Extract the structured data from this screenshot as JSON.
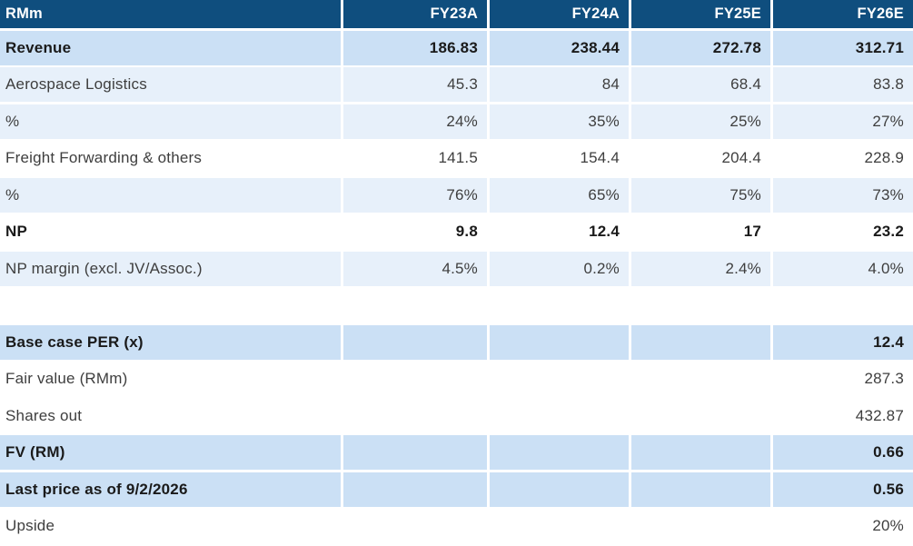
{
  "colors": {
    "header_bg": "#0F4E7E",
    "header_text": "#FFFFFF",
    "emphasis_row_bg": "#CBE0F5",
    "tint_row_bg": "#E7F0FA",
    "text": "#3E3E3E",
    "bold_text": "#1A1A1A"
  },
  "table": {
    "columns": [
      "RMm",
      "FY23A",
      "FY24A",
      "FY25E",
      "FY26E"
    ],
    "rows": [
      {
        "label": "Revenue",
        "values": [
          "186.83",
          "238.44",
          "272.78",
          "312.71"
        ],
        "style": "emphasis",
        "bold": true
      },
      {
        "label": "Aerospace Logistics",
        "values": [
          "45.3",
          "84",
          "68.4",
          "83.8"
        ],
        "style": "tint",
        "bold": false
      },
      {
        "label": "%",
        "values": [
          "24%",
          "35%",
          "25%",
          "27%"
        ],
        "style": "tint",
        "bold": false
      },
      {
        "label": "Freight Forwarding & others",
        "values": [
          "141.5",
          "154.4",
          "204.4",
          "228.9"
        ],
        "style": "plain",
        "bold": false
      },
      {
        "label": "%",
        "values": [
          "76%",
          "65%",
          "75%",
          "73%"
        ],
        "style": "tint",
        "bold": false
      },
      {
        "label": "NP",
        "values": [
          "9.8",
          "12.4",
          "17",
          "23.2"
        ],
        "style": "plain",
        "bold": true
      },
      {
        "label": "NP margin (excl. JV/Assoc.)",
        "values": [
          "4.5%",
          "0.2%",
          "2.4%",
          "4.0%"
        ],
        "style": "tint",
        "bold": false
      },
      {
        "label": "",
        "values": [
          "",
          "",
          "",
          ""
        ],
        "style": "spacer",
        "bold": false
      },
      {
        "label": "Base case PER (x)",
        "values": [
          "",
          "",
          "",
          "12.4"
        ],
        "style": "emphasis",
        "bold": true
      },
      {
        "label": "Fair value (RMm)",
        "values": [
          "",
          "",
          "",
          "287.3"
        ],
        "style": "plain",
        "bold": false
      },
      {
        "label": "Shares out",
        "values": [
          "",
          "",
          "",
          "432.87"
        ],
        "style": "plain",
        "bold": false
      },
      {
        "label": "FV (RM)",
        "values": [
          "",
          "",
          "",
          "0.66"
        ],
        "style": "emphasis",
        "bold": true
      },
      {
        "label": "Last price as of 9/2/2026",
        "values": [
          "",
          "",
          "",
          "0.56"
        ],
        "style": "emphasis",
        "bold": true
      },
      {
        "label": "Upside",
        "values": [
          "",
          "",
          "",
          "20%"
        ],
        "style": "plain",
        "bold": false
      }
    ]
  }
}
